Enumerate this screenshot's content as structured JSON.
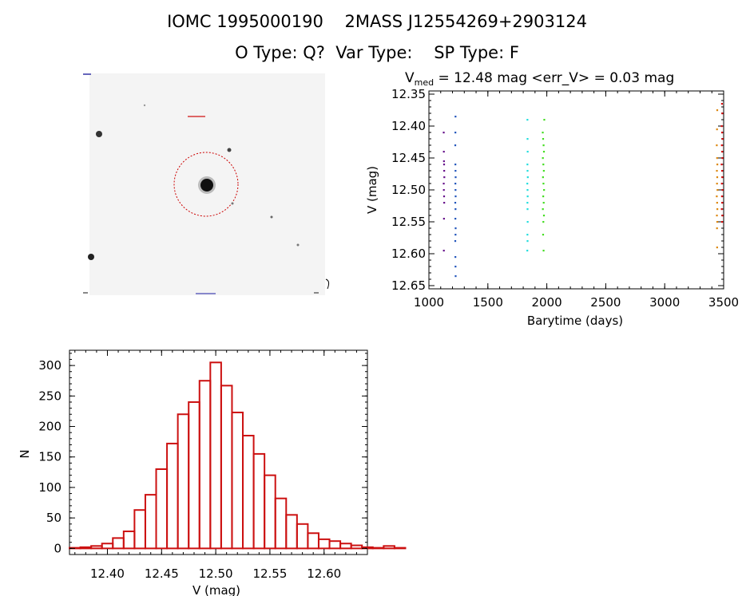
{
  "header": {
    "line1": "IOMC 1995000190    2MASS J12554269+2903124",
    "line2": "O Type: Q?  Var Type:    SP Type: F"
  },
  "image": {
    "name": "sky-image",
    "colors": {
      "background": "#f4f4f4",
      "star": "#000000",
      "circle": "#cc0000"
    }
  },
  "chart_data": [
    {
      "type": "scatter",
      "title_main": "V",
      "title_sub": "med",
      "title_rest": " = 12.48 mag <err_V> = 0.03 mag",
      "xlabel": "Barytime (days)",
      "ylabel": "V (mag)",
      "xlim": [
        1000,
        3500
      ],
      "ylim": [
        12.655,
        12.345
      ],
      "x_ticks": [
        1000,
        1500,
        2000,
        2500,
        3000,
        3500
      ],
      "x_tick_labels": [
        "1000",
        "1500",
        "2000",
        "2500",
        "3000",
        "3500"
      ],
      "y_ticks": [
        12.35,
        12.4,
        12.45,
        12.5,
        12.55,
        12.6,
        12.65
      ],
      "y_tick_labels": [
        "12.35",
        "12.40",
        "12.45",
        "12.50",
        "12.55",
        "12.60",
        "12.65"
      ],
      "series": [
        {
          "color": "#66108a",
          "points": [
            [
              1125,
              12.41
            ],
            [
              1126,
              12.44
            ],
            [
              1127,
              12.455
            ],
            [
              1128,
              12.46
            ],
            [
              1129,
              12.47
            ],
            [
              1130,
              12.48
            ],
            [
              1125,
              12.49
            ],
            [
              1126,
              12.5
            ],
            [
              1128,
              12.51
            ],
            [
              1129,
              12.52
            ],
            [
              1127,
              12.545
            ],
            [
              1126,
              12.595
            ]
          ]
        },
        {
          "color": "#2255bb",
          "points": [
            [
              1225,
              12.385
            ],
            [
              1224,
              12.41
            ],
            [
              1223,
              12.43
            ],
            [
              1224,
              12.46
            ],
            [
              1225,
              12.47
            ],
            [
              1226,
              12.48
            ],
            [
              1224,
              12.49
            ],
            [
              1225,
              12.5
            ],
            [
              1226,
              12.51
            ],
            [
              1223,
              12.52
            ],
            [
              1225,
              12.53
            ],
            [
              1224,
              12.545
            ],
            [
              1226,
              12.56
            ],
            [
              1225,
              12.57
            ],
            [
              1223,
              12.58
            ],
            [
              1224,
              12.605
            ],
            [
              1225,
              12.62
            ],
            [
              1226,
              12.635
            ]
          ]
        },
        {
          "color": "#22dddd",
          "points": [
            [
              1835,
              12.39
            ],
            [
              1836,
              12.42
            ],
            [
              1837,
              12.44
            ],
            [
              1835,
              12.46
            ],
            [
              1836,
              12.47
            ],
            [
              1838,
              12.48
            ],
            [
              1834,
              12.49
            ],
            [
              1836,
              12.5
            ],
            [
              1837,
              12.51
            ],
            [
              1835,
              12.52
            ],
            [
              1836,
              12.53
            ],
            [
              1837,
              12.55
            ],
            [
              1835,
              12.57
            ],
            [
              1836,
              12.58
            ],
            [
              1834,
              12.595
            ]
          ]
        },
        {
          "color": "#44dd22",
          "points": [
            [
              1965,
              12.41
            ],
            [
              1968,
              12.42
            ],
            [
              1972,
              12.43
            ],
            [
              1975,
              12.44
            ],
            [
              1966,
              12.45
            ],
            [
              1970,
              12.46
            ],
            [
              1974,
              12.47
            ],
            [
              1967,
              12.48
            ],
            [
              1971,
              12.49
            ],
            [
              1976,
              12.5
            ],
            [
              1969,
              12.51
            ],
            [
              1973,
              12.52
            ],
            [
              1966,
              12.53
            ],
            [
              1975,
              12.54
            ],
            [
              1970,
              12.55
            ],
            [
              1968,
              12.57
            ],
            [
              1972,
              12.595
            ],
            [
              1978,
              12.39
            ]
          ]
        },
        {
          "color": "#dd8811",
          "points": [
            [
              3445,
              12.375
            ],
            [
              3443,
              12.405
            ],
            [
              3441,
              12.43
            ],
            [
              3444,
              12.45
            ],
            [
              3446,
              12.46
            ],
            [
              3442,
              12.47
            ],
            [
              3445,
              12.48
            ],
            [
              3443,
              12.49
            ],
            [
              3447,
              12.5
            ],
            [
              3441,
              12.51
            ],
            [
              3444,
              12.52
            ],
            [
              3446,
              12.53
            ],
            [
              3442,
              12.54
            ],
            [
              3445,
              12.55
            ],
            [
              3443,
              12.56
            ],
            [
              3444,
              12.59
            ]
          ]
        },
        {
          "color": "#dd1111",
          "points": [
            [
              3485,
              12.365
            ],
            [
              3488,
              12.38
            ],
            [
              3483,
              12.4
            ],
            [
              3486,
              12.41
            ],
            [
              3490,
              12.42
            ],
            [
              3484,
              12.43
            ],
            [
              3487,
              12.44
            ],
            [
              3489,
              12.45
            ],
            [
              3482,
              12.46
            ],
            [
              3486,
              12.47
            ],
            [
              3488,
              12.48
            ],
            [
              3484,
              12.49
            ],
            [
              3490,
              12.5
            ],
            [
              3485,
              12.51
            ],
            [
              3487,
              12.52
            ],
            [
              3483,
              12.53
            ],
            [
              3489,
              12.54
            ],
            [
              3486,
              12.55
            ]
          ]
        }
      ]
    },
    {
      "type": "bar",
      "xlabel": "V (mag)",
      "ylabel": "N",
      "xlim": [
        12.365,
        12.64
      ],
      "ylim": [
        -10,
        325
      ],
      "bin_width": 0.01,
      "bin_start": 12.37,
      "values": [
        1,
        2,
        4,
        8,
        17,
        28,
        63,
        88,
        130,
        172,
        220,
        240,
        275,
        305,
        267,
        223,
        185,
        155,
        120,
        82,
        55,
        40,
        25,
        15,
        12,
        8,
        5,
        2,
        1,
        4,
        1
      ],
      "x_ticks": [
        12.4,
        12.45,
        12.5,
        12.55,
        12.6
      ],
      "x_tick_labels": [
        "12.40",
        "12.45",
        "12.50",
        "12.55",
        "12.60"
      ],
      "y_ticks": [
        0,
        50,
        100,
        150,
        200,
        250,
        300
      ],
      "y_tick_labels": [
        "0",
        "50",
        "100",
        "150",
        "200",
        "250",
        "300"
      ],
      "bar_color": "#cc1111"
    }
  ]
}
